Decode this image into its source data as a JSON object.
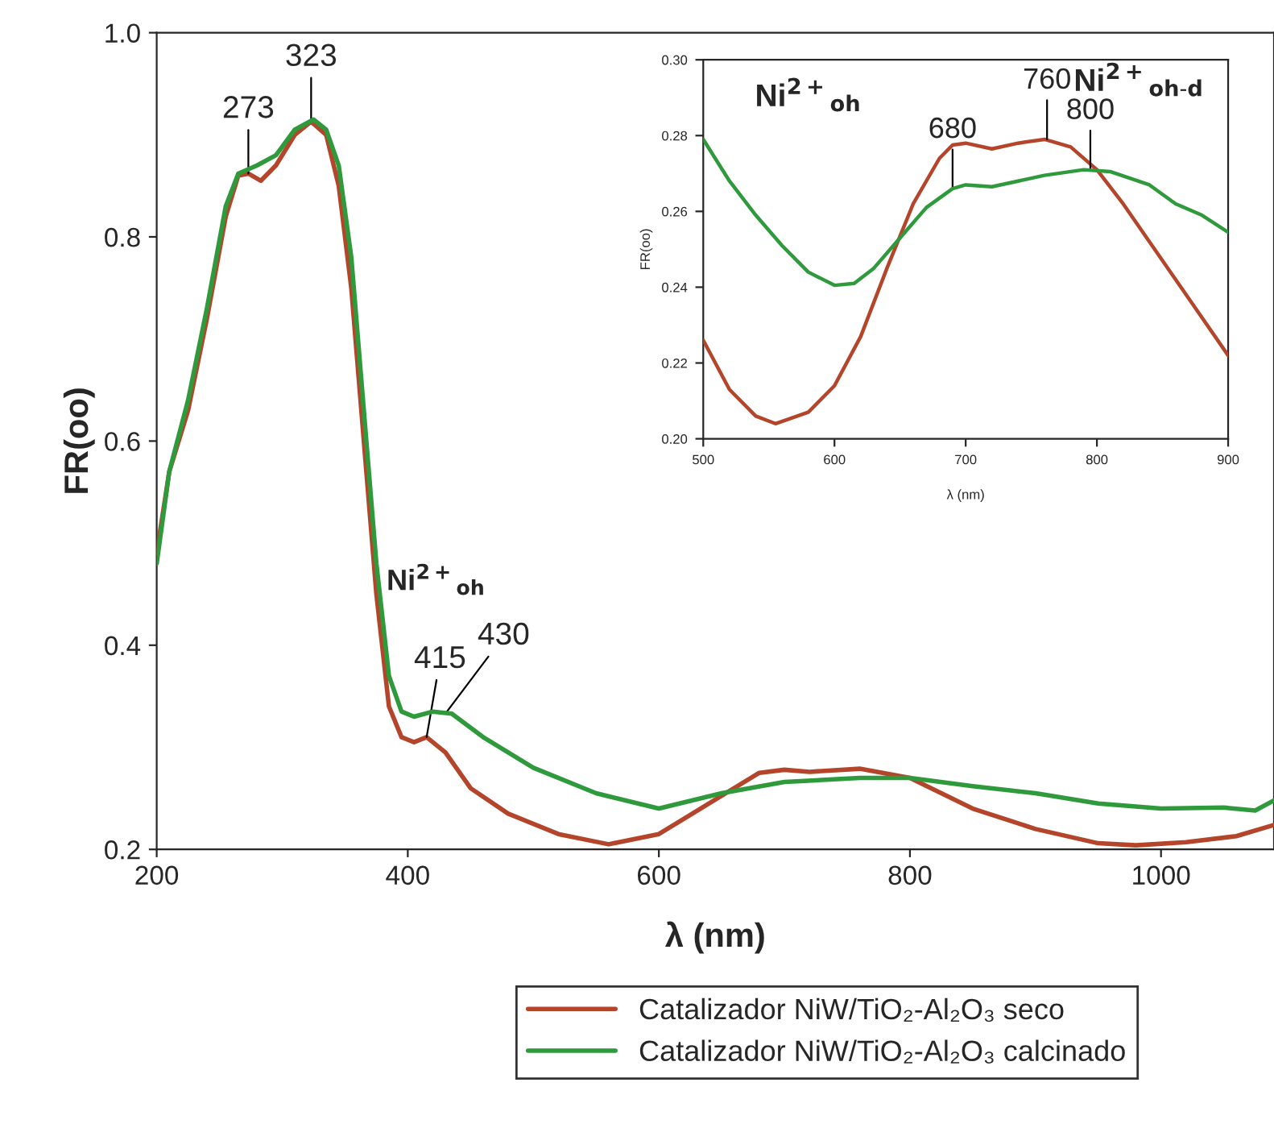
{
  "chart_data": [
    {
      "type": "line",
      "xlabel": "λ (nm)",
      "ylabel": "FR(oo)",
      "xlim": [
        200,
        1090
      ],
      "xticks": [
        200,
        400,
        600,
        800,
        1000
      ],
      "ylim": [
        0.2,
        1.0
      ],
      "yticks": [
        {
          "value": 0.2,
          "label": "0.2"
        },
        {
          "value": 0.4,
          "label": "0.4"
        },
        {
          "value": 0.6,
          "label": "0.6"
        },
        {
          "value": 0.8,
          "label": "0.8"
        },
        {
          "value": 1.0,
          "label": "1.0"
        }
      ],
      "grid": false,
      "legend": "bottom",
      "marker": "none",
      "line_style": "solid",
      "series": [
        {
          "name": "Catalizador NiW/TiO₂-Al₂O₃ seco",
          "color": "#b5452a",
          "x": [
            200,
            210,
            225,
            240,
            255,
            265,
            273,
            283,
            295,
            310,
            323,
            335,
            345,
            355,
            365,
            375,
            385,
            395,
            405,
            415,
            430,
            450,
            480,
            520,
            560,
            600,
            640,
            680,
            700,
            720,
            760,
            800,
            850,
            900,
            950,
            980,
            1020,
            1060,
            1090
          ],
          "values": [
            0.49,
            0.57,
            0.63,
            0.72,
            0.82,
            0.86,
            0.862,
            0.855,
            0.87,
            0.9,
            0.913,
            0.9,
            0.85,
            0.75,
            0.6,
            0.45,
            0.34,
            0.31,
            0.305,
            0.31,
            0.295,
            0.26,
            0.235,
            0.215,
            0.205,
            0.215,
            0.245,
            0.275,
            0.278,
            0.276,
            0.279,
            0.27,
            0.24,
            0.22,
            0.206,
            0.204,
            0.207,
            0.213,
            0.224
          ]
        },
        {
          "name": "Catalizador NiW/TiO₂-Al₂O₃ calcinado",
          "color": "#2e9a3c",
          "x": [
            200,
            210,
            225,
            240,
            255,
            265,
            280,
            295,
            310,
            325,
            335,
            345,
            355,
            365,
            375,
            385,
            395,
            405,
            420,
            435,
            460,
            500,
            550,
            600,
            650,
            700,
            760,
            800,
            850,
            900,
            950,
            1000,
            1050,
            1075,
            1090
          ],
          "values": [
            0.48,
            0.57,
            0.64,
            0.73,
            0.83,
            0.862,
            0.87,
            0.88,
            0.905,
            0.915,
            0.905,
            0.87,
            0.78,
            0.63,
            0.48,
            0.37,
            0.335,
            0.33,
            0.335,
            0.333,
            0.31,
            0.28,
            0.255,
            0.24,
            0.255,
            0.266,
            0.27,
            0.27,
            0.262,
            0.255,
            0.245,
            0.24,
            0.241,
            0.238,
            0.248
          ]
        }
      ],
      "annotations": [
        {
          "text": "273",
          "x": 273,
          "y": 0.862
        },
        {
          "text": "323",
          "x": 323,
          "y": 0.913
        },
        {
          "text": "415",
          "x": 415,
          "y": 0.31
        },
        {
          "text": "430",
          "x": 430,
          "y": 0.333
        },
        "Ni$^{2+}$$_{oh}$"
      ]
    },
    {
      "type": "line",
      "xlabel": "λ (nm)",
      "ylabel": "FR(oo)",
      "xlim": [
        500,
        900
      ],
      "xticks": [
        500,
        600,
        700,
        800,
        900
      ],
      "ylim": [
        0.2,
        0.3
      ],
      "yticks": [
        {
          "value": 0.2,
          "label": "0.20"
        },
        {
          "value": 0.22,
          "label": "0.22"
        },
        {
          "value": 0.24,
          "label": "0.24"
        },
        {
          "value": 0.26,
          "label": "0.26"
        },
        {
          "value": 0.28,
          "label": "0.28"
        },
        {
          "value": 0.3,
          "label": "0.30"
        }
      ],
      "grid": false,
      "marker": "none",
      "line_style": "solid",
      "series": [
        {
          "color": "#b5452a",
          "x": [
            500,
            520,
            540,
            555,
            580,
            600,
            620,
            640,
            660,
            680,
            690,
            700,
            720,
            740,
            760,
            780,
            800,
            820,
            840,
            860,
            880,
            900
          ],
          "values": [
            0.226,
            0.213,
            0.206,
            0.204,
            0.207,
            0.214,
            0.227,
            0.245,
            0.262,
            0.274,
            0.2775,
            0.278,
            0.2765,
            0.278,
            0.279,
            0.277,
            0.271,
            0.262,
            0.252,
            0.242,
            0.232,
            0.222
          ]
        },
        {
          "color": "#2e9a3c",
          "x": [
            500,
            520,
            540,
            560,
            580,
            600,
            615,
            630,
            650,
            670,
            690,
            700,
            720,
            740,
            760,
            790,
            810,
            840,
            860,
            880,
            900
          ],
          "values": [
            0.279,
            0.268,
            0.259,
            0.251,
            0.244,
            0.2405,
            0.241,
            0.245,
            0.253,
            0.261,
            0.266,
            0.267,
            0.2665,
            0.268,
            0.2695,
            0.271,
            0.2705,
            0.267,
            0.262,
            0.259,
            0.2545
          ]
        }
      ],
      "annotations": [
        {
          "text": "680",
          "x": 690,
          "y": 0.266
        },
        {
          "text": "760",
          "x": 762,
          "y": 0.279
        },
        {
          "text": "800",
          "x": 795,
          "y": 0.271
        },
        "Ni$^{2+}$$_{oh}$",
        "Ni$^{2+}$$_{oh-d}$"
      ]
    }
  ]
}
